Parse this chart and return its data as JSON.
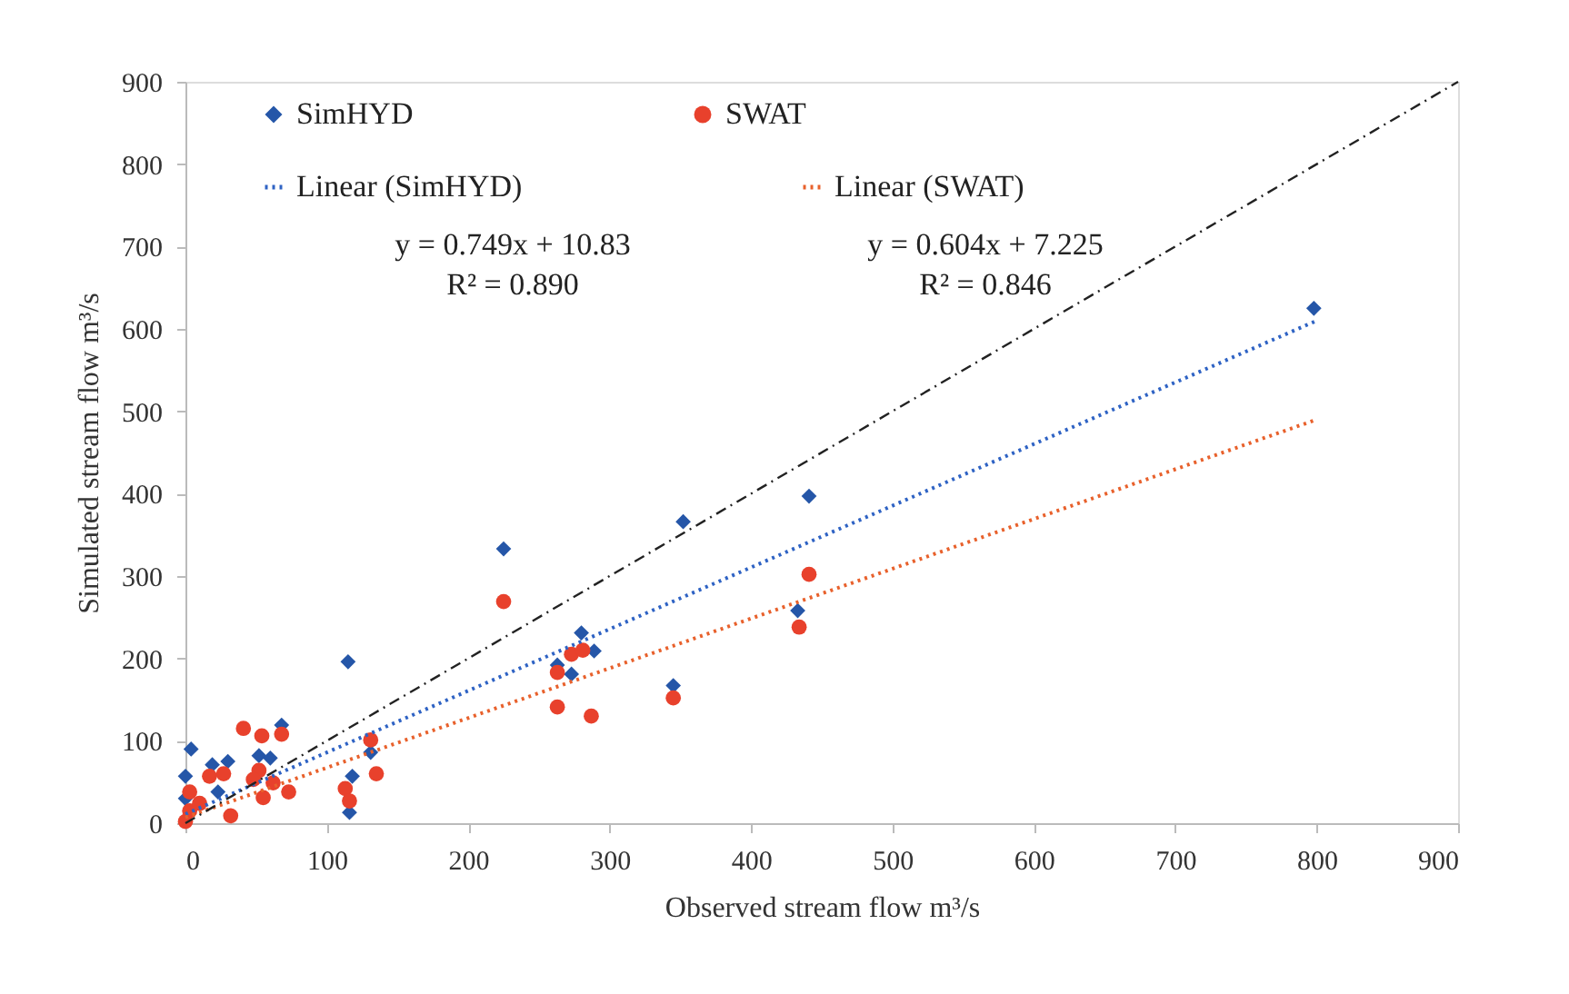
{
  "chart_data": {
    "type": "scatter",
    "xlabel": "Observed stream flow m³/s",
    "ylabel": "Simulated stream flow  m³/s",
    "xlim": [
      0,
      900
    ],
    "ylim": [
      0,
      900
    ],
    "xticks": [
      0,
      100,
      200,
      300,
      400,
      500,
      600,
      700,
      800,
      900
    ],
    "yticks": [
      0,
      100,
      200,
      300,
      400,
      500,
      600,
      700,
      800,
      900
    ],
    "grid": false,
    "legend": "top",
    "annotations": [
      "y = 0.749x + 10.83",
      "R² = 0.890",
      "y = 0.604x + 7.225",
      "R² = 0.846"
    ],
    "series": [
      {
        "name": "SimHYD",
        "color": "#2556a8",
        "marker": "diamond",
        "x": [
          4,
          115,
          68,
          19,
          30,
          0,
          52,
          60,
          118,
          116,
          131,
          23,
          0,
          225,
          352,
          441,
          433,
          345,
          280,
          289,
          263,
          273,
          798
        ],
        "values": [
          90,
          196,
          119,
          71,
          75,
          57,
          82,
          79,
          57,
          13,
          86,
          38,
          30,
          333,
          366,
          397,
          258,
          167,
          231,
          209,
          192,
          181,
          625
        ]
      },
      {
        "name": "SWAT",
        "color": "#e8412c",
        "marker": "circle",
        "x": [
          225,
          441,
          434,
          345,
          263,
          287,
          263,
          273,
          281,
          135,
          41,
          54,
          68,
          131,
          17,
          27,
          52,
          62,
          73,
          55,
          113,
          116,
          32,
          3,
          3,
          0,
          10,
          48
        ],
        "values": [
          269,
          302,
          238,
          152,
          141,
          130,
          183,
          205,
          210,
          60,
          115,
          106,
          108,
          101,
          57,
          60,
          64,
          49,
          38,
          31,
          42,
          27,
          9,
          38,
          15,
          2,
          24,
          53
        ]
      },
      {
        "name": "Linear (SimHYD)",
        "type": "line",
        "color": "#2f63c4",
        "line_style": "dotted",
        "marker": "none",
        "x": [
          0,
          800
        ],
        "values": [
          11,
          610
        ]
      },
      {
        "name": "Linear (SWAT)",
        "type": "line",
        "color": "#e8612c",
        "line_style": "dotted",
        "marker": "none",
        "x": [
          0,
          800
        ],
        "values": [
          7,
          490
        ]
      },
      {
        "type": "line",
        "color": "#222222",
        "line_style": "dashed",
        "marker": "none",
        "x": [
          0,
          900
        ],
        "values": [
          0,
          900
        ]
      }
    ]
  }
}
